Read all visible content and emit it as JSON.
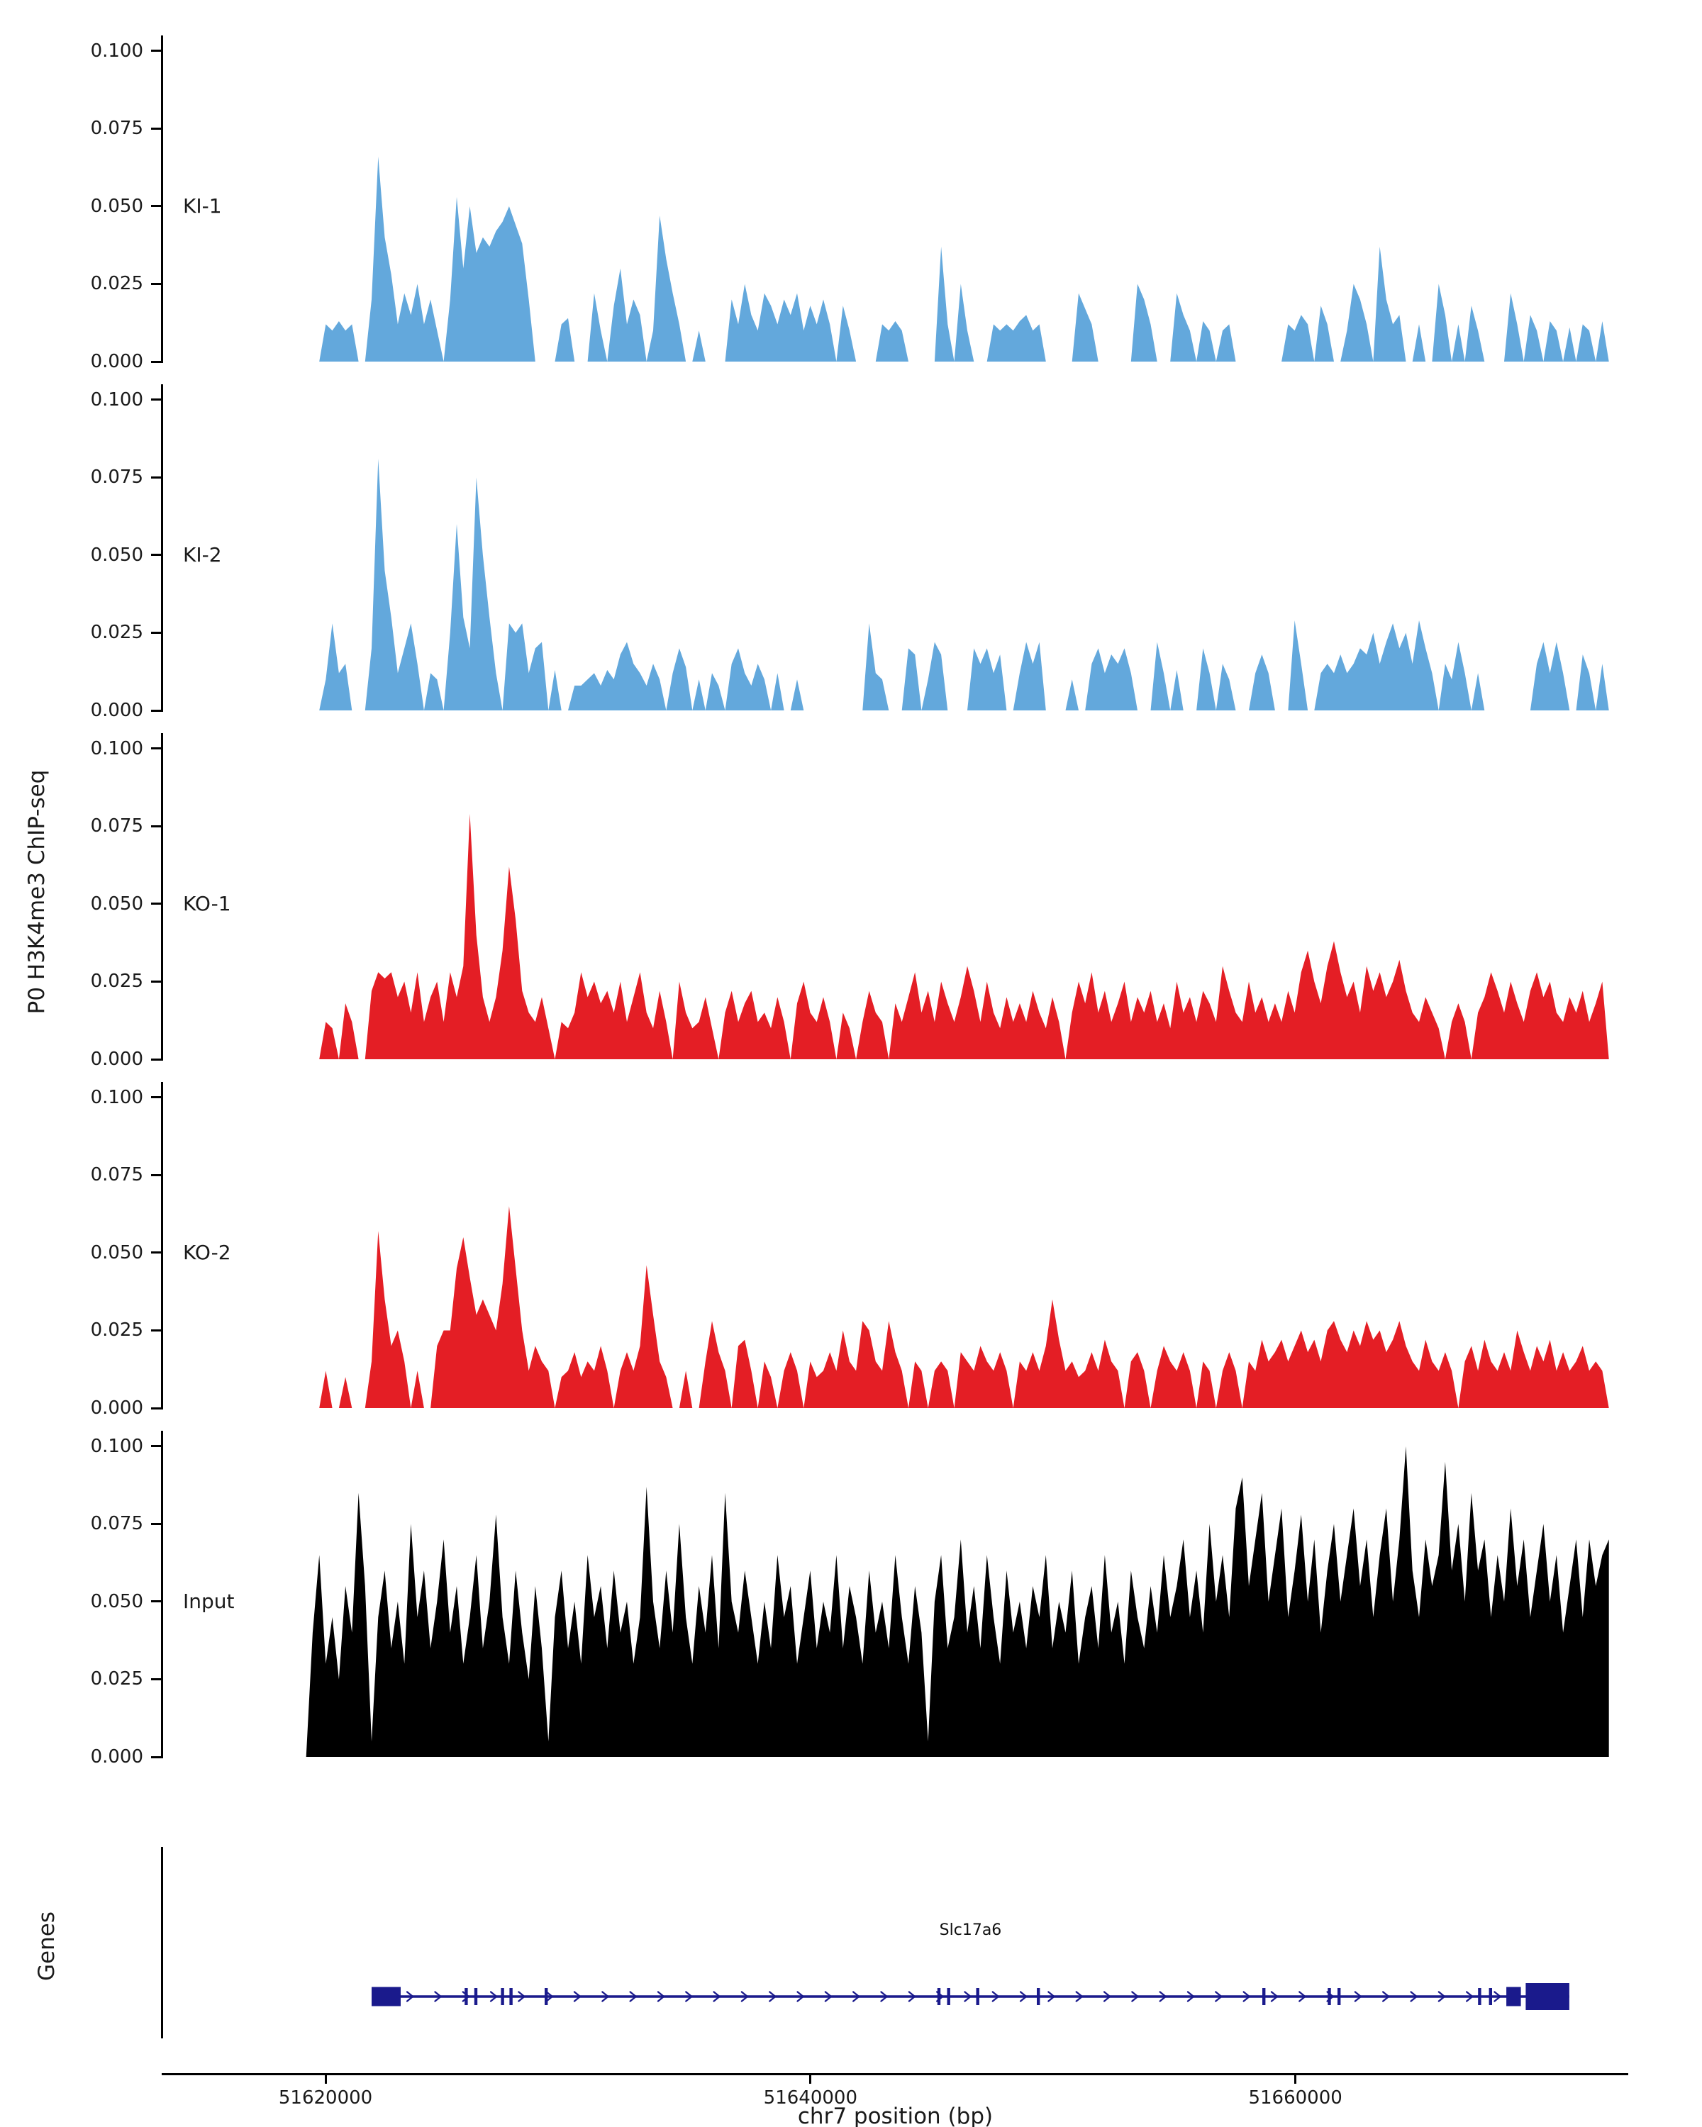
{
  "figure": {
    "y_axis_title": "P0 H3K4me3 ChIP-seq",
    "x_axis_title": "chr7 position (bp)"
  },
  "chart_data": {
    "type": "area",
    "title": "",
    "y_label": "P0 H3K4me3 ChIP-seq",
    "x_label": "chr7 position (bp)",
    "x_range": [
      51613300,
      51673700
    ],
    "ylim": [
      0,
      0.105
    ],
    "grid": false,
    "y_ticks": [
      {
        "label": "0.100",
        "value": 0.1
      },
      {
        "label": "0.075",
        "value": 0.075
      },
      {
        "label": "0.050",
        "value": 0.05
      },
      {
        "label": "0.025",
        "value": 0.025
      },
      {
        "label": "0.000",
        "value": 0.0
      }
    ],
    "x_ticks": [
      {
        "label": "51620000",
        "value": 51620000
      },
      {
        "label": "51640000",
        "value": 51640000
      },
      {
        "label": "51660000",
        "value": 51660000
      }
    ],
    "x_start": 51619200,
    "x_step": 270,
    "tracks": [
      {
        "name": "KI-1",
        "color": "#63A8DC",
        "values": [
          0,
          0,
          0,
          0.012,
          0.01,
          0.013,
          0.01,
          0.012,
          0,
          0,
          0.02,
          0.066,
          0.04,
          0.028,
          0.012,
          0.022,
          0.015,
          0.025,
          0.012,
          0.02,
          0.01,
          0,
          0.02,
          0.053,
          0.03,
          0.05,
          0.035,
          0.04,
          0.037,
          0.042,
          0.045,
          0.05,
          0.044,
          0.038,
          0.02,
          0,
          0,
          0,
          0,
          0.012,
          0.014,
          0,
          0,
          0,
          0.022,
          0.01,
          0,
          0.018,
          0.03,
          0.012,
          0.02,
          0.015,
          0,
          0.01,
          0.047,
          0.033,
          0.022,
          0.012,
          0,
          0,
          0.01,
          0,
          0,
          0,
          0,
          0.02,
          0.012,
          0.025,
          0.015,
          0.01,
          0.022,
          0.018,
          0.012,
          0.02,
          0.015,
          0.022,
          0.01,
          0.018,
          0.012,
          0.02,
          0.012,
          0,
          0.018,
          0.01,
          0,
          0,
          0,
          0,
          0.012,
          0.01,
          0.013,
          0.01,
          0,
          0,
          0,
          0,
          0,
          0.037,
          0.012,
          0,
          0.025,
          0.01,
          0,
          0,
          0,
          0.012,
          0.01,
          0.012,
          0.01,
          0.013,
          0.015,
          0.01,
          0.012,
          0,
          0,
          0,
          0,
          0,
          0.022,
          0.017,
          0.012,
          0,
          0,
          0,
          0,
          0,
          0,
          0.025,
          0.02,
          0.012,
          0,
          0,
          0,
          0.022,
          0.015,
          0.01,
          0,
          0.013,
          0.01,
          0,
          0.01,
          0.012,
          0,
          0,
          0,
          0,
          0,
          0,
          0,
          0,
          0.012,
          0.01,
          0.015,
          0.012,
          0,
          0.018,
          0.012,
          0,
          0,
          0.01,
          0.025,
          0.02,
          0.012,
          0,
          0.037,
          0.02,
          0.012,
          0.015,
          0,
          0,
          0.012,
          0,
          0,
          0.025,
          0.015,
          0,
          0.012,
          0,
          0.018,
          0.01,
          0,
          0,
          0,
          0,
          0.022,
          0.012,
          0,
          0.015,
          0.01,
          0,
          0.013,
          0.01,
          0,
          0.011,
          0,
          0.012,
          0.01,
          0,
          0.013,
          0
        ]
      },
      {
        "name": "KI-2",
        "color": "#63A8DC",
        "values": [
          0,
          0,
          0,
          0.01,
          0.028,
          0.012,
          0.015,
          0,
          0,
          0,
          0.02,
          0.081,
          0.045,
          0.03,
          0.012,
          0.02,
          0.028,
          0.015,
          0,
          0.012,
          0.01,
          0,
          0.025,
          0.06,
          0.03,
          0.02,
          0.075,
          0.05,
          0.03,
          0.012,
          0,
          0.028,
          0.025,
          0.028,
          0.012,
          0.02,
          0.022,
          0,
          0.013,
          0,
          0,
          0.008,
          0.008,
          0.01,
          0.012,
          0.008,
          0.013,
          0.01,
          0.018,
          0.022,
          0.015,
          0.012,
          0.008,
          0.015,
          0.01,
          0,
          0.012,
          0.02,
          0.014,
          0,
          0.01,
          0,
          0.012,
          0.008,
          0,
          0.015,
          0.02,
          0.012,
          0.008,
          0.015,
          0.01,
          0,
          0.012,
          0,
          0,
          0.01,
          0,
          0,
          0,
          0,
          0,
          0,
          0,
          0,
          0,
          0,
          0.028,
          0.012,
          0.01,
          0,
          0,
          0,
          0.02,
          0.018,
          0,
          0.01,
          0.022,
          0.018,
          0,
          0,
          0,
          0,
          0.02,
          0.015,
          0.02,
          0.012,
          0.018,
          0,
          0,
          0.012,
          0.022,
          0.015,
          0.022,
          0,
          0,
          0,
          0,
          0.01,
          0,
          0,
          0.015,
          0.02,
          0.012,
          0.018,
          0.015,
          0.02,
          0.012,
          0,
          0,
          0,
          0.022,
          0.012,
          0,
          0.013,
          0,
          0,
          0,
          0.02,
          0.012,
          0,
          0.015,
          0.01,
          0,
          0,
          0,
          0.012,
          0.018,
          0.012,
          0,
          0,
          0,
          0.029,
          0.015,
          0,
          0,
          0.012,
          0.015,
          0.012,
          0.018,
          0.012,
          0.015,
          0.02,
          0.018,
          0.025,
          0.015,
          0.022,
          0.028,
          0.02,
          0.025,
          0.015,
          0.029,
          0.02,
          0.012,
          0,
          0.015,
          0.01,
          0.022,
          0.012,
          0,
          0.012,
          0,
          0,
          0,
          0,
          0,
          0,
          0,
          0,
          0.015,
          0.022,
          0.012,
          0.022,
          0.012,
          0,
          0,
          0.018,
          0.012,
          0,
          0.015,
          0
        ]
      },
      {
        "name": "KO-1",
        "color": "#E41E25",
        "values": [
          0,
          0,
          0,
          0.012,
          0.01,
          0,
          0.018,
          0.012,
          0,
          0,
          0.022,
          0.028,
          0.026,
          0.028,
          0.02,
          0.025,
          0.015,
          0.028,
          0.012,
          0.02,
          0.025,
          0.012,
          0.028,
          0.02,
          0.03,
          0.079,
          0.04,
          0.02,
          0.012,
          0.02,
          0.035,
          0.062,
          0.045,
          0.022,
          0.015,
          0.012,
          0.02,
          0.01,
          0,
          0.012,
          0.01,
          0.015,
          0.028,
          0.02,
          0.025,
          0.018,
          0.022,
          0.015,
          0.025,
          0.012,
          0.02,
          0.028,
          0.015,
          0.01,
          0.022,
          0.012,
          0,
          0.025,
          0.015,
          0.01,
          0.012,
          0.02,
          0.01,
          0,
          0.015,
          0.022,
          0.012,
          0.018,
          0.022,
          0.012,
          0.015,
          0.01,
          0.02,
          0.012,
          0,
          0.018,
          0.025,
          0.015,
          0.012,
          0.02,
          0.012,
          0,
          0.015,
          0.01,
          0,
          0.012,
          0.022,
          0.015,
          0.012,
          0,
          0.018,
          0.012,
          0.02,
          0.028,
          0.015,
          0.022,
          0.012,
          0.025,
          0.018,
          0.012,
          0.02,
          0.03,
          0.022,
          0.012,
          0.025,
          0.015,
          0.01,
          0.02,
          0.012,
          0.018,
          0.012,
          0.022,
          0.015,
          0.01,
          0.02,
          0.012,
          0,
          0.015,
          0.025,
          0.018,
          0.028,
          0.015,
          0.022,
          0.012,
          0.018,
          0.025,
          0.012,
          0.02,
          0.015,
          0.022,
          0.012,
          0.018,
          0.01,
          0.025,
          0.015,
          0.02,
          0.012,
          0.022,
          0.018,
          0.012,
          0.03,
          0.022,
          0.015,
          0.012,
          0.025,
          0.015,
          0.02,
          0.012,
          0.018,
          0.012,
          0.022,
          0.015,
          0.028,
          0.035,
          0.025,
          0.018,
          0.03,
          0.038,
          0.028,
          0.02,
          0.025,
          0.015,
          0.03,
          0.022,
          0.028,
          0.02,
          0.025,
          0.032,
          0.022,
          0.015,
          0.012,
          0.02,
          0.015,
          0.01,
          0,
          0.012,
          0.018,
          0.012,
          0,
          0.015,
          0.02,
          0.028,
          0.022,
          0.015,
          0.025,
          0.018,
          0.012,
          0.022,
          0.028,
          0.02,
          0.025,
          0.015,
          0.012,
          0.02,
          0.015,
          0.022,
          0.012,
          0.018,
          0.025,
          0
        ]
      },
      {
        "name": "KO-2",
        "color": "#E41E25",
        "values": [
          0,
          0,
          0,
          0.012,
          0,
          0,
          0.01,
          0,
          0,
          0,
          0.015,
          0.057,
          0.035,
          0.02,
          0.025,
          0.015,
          0,
          0.012,
          0,
          0,
          0.02,
          0.025,
          0.025,
          0.045,
          0.055,
          0.042,
          0.03,
          0.035,
          0.03,
          0.025,
          0.04,
          0.065,
          0.045,
          0.025,
          0.012,
          0.02,
          0.015,
          0.012,
          0,
          0.01,
          0.012,
          0.018,
          0.01,
          0.015,
          0.012,
          0.02,
          0.012,
          0,
          0.012,
          0.018,
          0.012,
          0.02,
          0.046,
          0.03,
          0.015,
          0.01,
          0,
          0,
          0.012,
          0,
          0,
          0.015,
          0.028,
          0.018,
          0.012,
          0,
          0.02,
          0.022,
          0.012,
          0,
          0.015,
          0.01,
          0,
          0.012,
          0.018,
          0.012,
          0,
          0.015,
          0.01,
          0.012,
          0.018,
          0.012,
          0.025,
          0.015,
          0.012,
          0.028,
          0.025,
          0.015,
          0.012,
          0.028,
          0.018,
          0.012,
          0,
          0.015,
          0.012,
          0,
          0.012,
          0.015,
          0.012,
          0,
          0.018,
          0.015,
          0.012,
          0.02,
          0.015,
          0.012,
          0.018,
          0.012,
          0,
          0.015,
          0.012,
          0.018,
          0.012,
          0.02,
          0.035,
          0.022,
          0.012,
          0.015,
          0.01,
          0.012,
          0.018,
          0.012,
          0.022,
          0.015,
          0.012,
          0,
          0.015,
          0.018,
          0.012,
          0,
          0.012,
          0.02,
          0.015,
          0.012,
          0.018,
          0.012,
          0,
          0.015,
          0.012,
          0,
          0.012,
          0.018,
          0.012,
          0,
          0.015,
          0.012,
          0.022,
          0.015,
          0.018,
          0.022,
          0.015,
          0.02,
          0.025,
          0.018,
          0.022,
          0.015,
          0.025,
          0.028,
          0.022,
          0.018,
          0.025,
          0.02,
          0.028,
          0.022,
          0.025,
          0.018,
          0.022,
          0.028,
          0.02,
          0.015,
          0.012,
          0.022,
          0.015,
          0.012,
          0.018,
          0.012,
          0,
          0.015,
          0.02,
          0.012,
          0.022,
          0.015,
          0.012,
          0.018,
          0.012,
          0.025,
          0.018,
          0.012,
          0.02,
          0.015,
          0.022,
          0.012,
          0.018,
          0.012,
          0.015,
          0.02,
          0.012,
          0.015,
          0.012,
          0
        ]
      },
      {
        "name": "Input",
        "color": "#000000",
        "values": [
          0,
          0.04,
          0.065,
          0.03,
          0.045,
          0.025,
          0.055,
          0.04,
          0.085,
          0.055,
          0.005,
          0.045,
          0.06,
          0.035,
          0.05,
          0.03,
          0.075,
          0.045,
          0.06,
          0.035,
          0.05,
          0.07,
          0.04,
          0.055,
          0.03,
          0.045,
          0.065,
          0.035,
          0.05,
          0.078,
          0.045,
          0.03,
          0.06,
          0.04,
          0.025,
          0.055,
          0.035,
          0.005,
          0.045,
          0.06,
          0.035,
          0.05,
          0.03,
          0.065,
          0.045,
          0.055,
          0.035,
          0.06,
          0.04,
          0.05,
          0.03,
          0.045,
          0.087,
          0.05,
          0.035,
          0.06,
          0.04,
          0.075,
          0.045,
          0.03,
          0.055,
          0.04,
          0.065,
          0.035,
          0.085,
          0.05,
          0.04,
          0.06,
          0.045,
          0.03,
          0.05,
          0.035,
          0.065,
          0.045,
          0.055,
          0.03,
          0.045,
          0.06,
          0.035,
          0.05,
          0.04,
          0.065,
          0.035,
          0.055,
          0.045,
          0.03,
          0.06,
          0.04,
          0.05,
          0.035,
          0.065,
          0.045,
          0.03,
          0.055,
          0.04,
          0.005,
          0.05,
          0.065,
          0.035,
          0.045,
          0.07,
          0.04,
          0.055,
          0.035,
          0.065,
          0.045,
          0.03,
          0.06,
          0.04,
          0.05,
          0.035,
          0.055,
          0.045,
          0.065,
          0.035,
          0.05,
          0.04,
          0.06,
          0.03,
          0.045,
          0.055,
          0.035,
          0.065,
          0.04,
          0.05,
          0.03,
          0.06,
          0.045,
          0.035,
          0.055,
          0.04,
          0.065,
          0.045,
          0.055,
          0.07,
          0.045,
          0.06,
          0.04,
          0.075,
          0.05,
          0.065,
          0.045,
          0.08,
          0.09,
          0.055,
          0.07,
          0.085,
          0.05,
          0.065,
          0.08,
          0.045,
          0.06,
          0.078,
          0.05,
          0.07,
          0.04,
          0.06,
          0.075,
          0.05,
          0.065,
          0.08,
          0.055,
          0.07,
          0.045,
          0.065,
          0.08,
          0.05,
          0.07,
          0.1,
          0.06,
          0.045,
          0.07,
          0.055,
          0.065,
          0.095,
          0.06,
          0.075,
          0.05,
          0.085,
          0.06,
          0.07,
          0.045,
          0.065,
          0.05,
          0.08,
          0.055,
          0.07,
          0.045,
          0.06,
          0.075,
          0.05,
          0.065,
          0.04,
          0.055,
          0.07,
          0.045,
          0.07,
          0.055,
          0.065,
          0.07
        ]
      }
    ]
  },
  "genes": {
    "axis_label": "Genes",
    "gene": {
      "label": "Slc17a6",
      "color": "#1A1A8C",
      "strand": "+",
      "start": 51621900,
      "end": 51671300,
      "boxes": [
        {
          "start": 51621900,
          "end": 51623100,
          "height": "medium"
        },
        {
          "start": 51668700,
          "end": 51669300,
          "height": "medium"
        },
        {
          "start": 51669500,
          "end": 51671300,
          "height": "large"
        }
      ],
      "exon_ticks": [
        51625800,
        51626200,
        51627300,
        51627650,
        51629100,
        51645300,
        51645700,
        51646900,
        51649400,
        51658700,
        51661400,
        51661800,
        51667600,
        51668050,
        51668900
      ],
      "arrow_step": 1150
    }
  }
}
